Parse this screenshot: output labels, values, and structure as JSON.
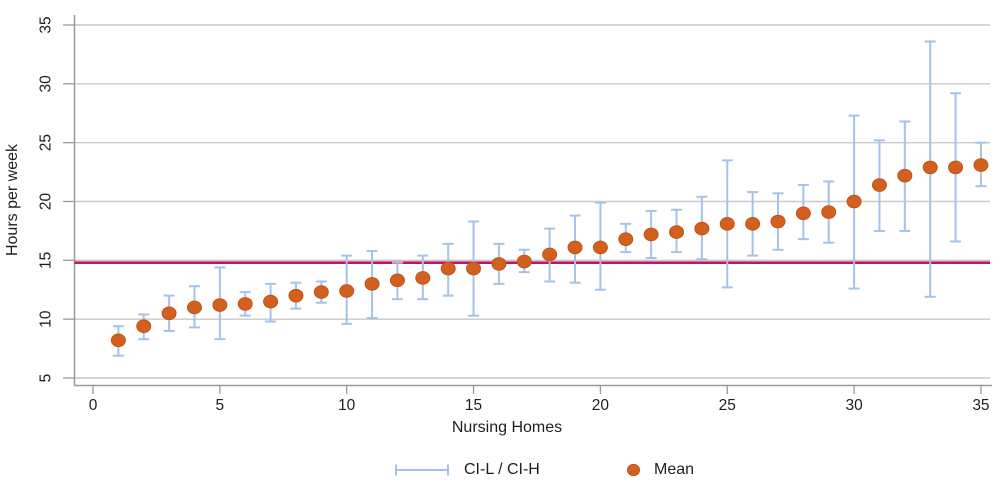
{
  "chart_data": {
    "type": "scatter",
    "title": "",
    "xlabel": "Nursing Homes",
    "ylabel": "Hours per week",
    "x_ticks": [
      0,
      5,
      10,
      15,
      20,
      25,
      30,
      35
    ],
    "y_ticks": [
      5,
      10,
      15,
      20,
      25,
      30,
      35
    ],
    "xlim": [
      -0.8,
      35.5
    ],
    "ylim": [
      4.4,
      35.9
    ],
    "grid": "horizontal",
    "legend_position": "bottom",
    "reference_line": {
      "value": 14.8
    },
    "x": [
      1,
      2,
      3,
      4,
      5,
      6,
      7,
      8,
      9,
      10,
      11,
      12,
      13,
      14,
      15,
      16,
      17,
      18,
      19,
      20,
      21,
      22,
      23,
      24,
      25,
      26,
      27,
      28,
      29,
      30,
      31,
      32,
      33,
      34,
      35
    ],
    "series": [
      {
        "name": "Mean",
        "values": [
          8.2,
          9.4,
          10.5,
          11.0,
          11.2,
          11.3,
          11.5,
          12.0,
          12.3,
          12.4,
          13.0,
          13.3,
          13.5,
          14.3,
          14.3,
          14.7,
          14.9,
          15.5,
          16.1,
          16.1,
          16.8,
          17.2,
          17.4,
          17.7,
          18.1,
          18.1,
          18.3,
          19.0,
          19.1,
          20.0,
          21.4,
          22.2,
          22.9,
          22.9,
          23.1
        ]
      },
      {
        "name": "CI-L",
        "values": [
          6.9,
          8.3,
          9.0,
          9.3,
          8.3,
          10.3,
          9.8,
          10.9,
          11.4,
          9.6,
          10.1,
          11.7,
          11.7,
          12.0,
          10.3,
          13.0,
          14.0,
          13.2,
          13.1,
          12.5,
          15.7,
          15.2,
          15.7,
          15.1,
          12.7,
          15.4,
          15.9,
          16.8,
          16.5,
          12.6,
          17.5,
          17.5,
          11.9,
          16.6,
          21.3
        ]
      },
      {
        "name": "CI-H",
        "values": [
          9.4,
          10.4,
          12.0,
          12.8,
          14.4,
          12.3,
          13.0,
          13.1,
          13.2,
          15.4,
          15.8,
          14.8,
          15.4,
          16.4,
          18.3,
          16.4,
          15.9,
          17.7,
          18.8,
          19.9,
          18.1,
          19.2,
          19.3,
          20.4,
          23.5,
          20.8,
          20.7,
          21.4,
          21.7,
          27.3,
          25.2,
          26.8,
          33.6,
          29.2,
          25.0
        ]
      }
    ],
    "legend": [
      {
        "label": "CI-L / CI-H",
        "symbol": "error-bar"
      },
      {
        "label": "Mean",
        "symbol": "dot"
      }
    ]
  },
  "colors": {
    "mean": "#d2601e",
    "mean_edge": "#c05317",
    "ci": "#a5c2e8",
    "reference": "#c01468",
    "grid": "#c9c9c9",
    "axis": "#9a9a9a",
    "text": "#1f1f1f",
    "background": "#ffffff"
  }
}
